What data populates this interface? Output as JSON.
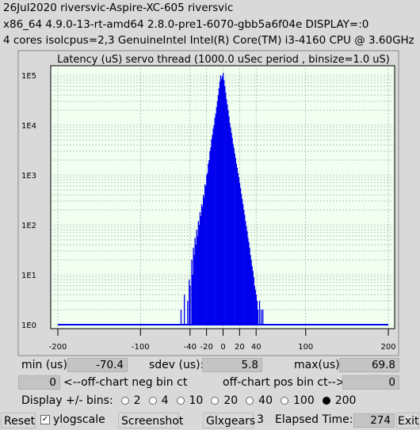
{
  "header": {
    "line1": "26Jul2020 riversvic-Aspire-XC-605 riversvic",
    "line2": "x86_64  4.9.0-13-rt-amd64  2.8.0-pre1-6070-gbb5a6f04e  DISPLAY=:0",
    "line3": "4 cores  isolcpus=2,3   GenuineIntel  Intel(R) Core(TM) i3-4160 CPU @ 3.60GHz"
  },
  "chart_data": {
    "type": "bar",
    "title": "Latency (uS) servo thread (1000.0 uSec period , binsize=1.0 uS)",
    "xlim": [
      -200,
      200
    ],
    "ylog": true,
    "ylim_exp": [
      0,
      5
    ],
    "x_ticks": [
      -200,
      -100,
      -40,
      -20,
      0,
      20,
      40,
      100,
      200
    ],
    "y_ticks": [
      "1E0",
      "1E1",
      "1E2",
      "1E3",
      "1E4",
      "1E5"
    ],
    "bar_color": "#0000ee",
    "background": "#f0fff0",
    "grid": true,
    "x": [
      -71,
      -60,
      -51,
      -47,
      -43,
      -41,
      -40,
      -38,
      -37,
      -36,
      -35,
      -34,
      -33,
      -32,
      -31,
      -30,
      -29,
      -28,
      -27,
      -26,
      -25,
      -24,
      -23,
      -22,
      -21,
      -20,
      -19,
      -18,
      -17,
      -16,
      -15,
      -14,
      -13,
      -12,
      -11,
      -10,
      -9,
      -8,
      -7,
      -6,
      -5,
      -4,
      -3,
      -2,
      -1,
      0,
      1,
      2,
      3,
      4,
      5,
      6,
      7,
      8,
      9,
      10,
      11,
      12,
      13,
      14,
      15,
      16,
      17,
      18,
      19,
      20,
      21,
      22,
      23,
      24,
      25,
      26,
      27,
      28,
      29,
      30,
      31,
      32,
      33,
      34,
      35,
      36,
      37,
      38,
      39,
      40,
      41,
      42,
      44,
      46,
      48,
      52,
      55,
      60,
      70
    ],
    "values": [
      1,
      1,
      2,
      4,
      3,
      8,
      6,
      20,
      10,
      35,
      25,
      55,
      40,
      80,
      60,
      120,
      100,
      180,
      150,
      260,
      230,
      400,
      350,
      650,
      600,
      1000,
      1100,
      1700,
      2000,
      3000,
      3600,
      5200,
      6400,
      8500,
      10000,
      14000,
      17000,
      23000,
      30000,
      40000,
      55000,
      75000,
      100000,
      85000,
      95000,
      110000,
      80000,
      60000,
      45000,
      33000,
      26000,
      20000,
      15000,
      11000,
      9000,
      7000,
      5500,
      4200,
      3500,
      2700,
      2200,
      1700,
      1400,
      1100,
      900,
      700,
      550,
      420,
      330,
      260,
      200,
      160,
      120,
      95,
      75,
      55,
      45,
      35,
      25,
      20,
      15,
      12,
      9,
      6,
      5,
      4,
      3,
      2,
      3,
      2,
      2,
      1,
      1,
      1,
      1
    ]
  },
  "stats": {
    "min_label": "min (us)",
    "min_value": "-70.4",
    "sdev_label": "sdev (us):",
    "sdev_value": "5.8",
    "max_label": "max(us)",
    "max_value": "69.8",
    "neg_value": "0",
    "neg_label": "<--off-chart neg bin ct",
    "pos_label": "off-chart pos bin ct-->",
    "pos_value": "0"
  },
  "bins": {
    "label": "Display +/- bins:",
    "options": [
      "2",
      "4",
      "10",
      "20",
      "40",
      "100",
      "200"
    ],
    "selected": "200"
  },
  "bottom": {
    "reset": "Reset",
    "ylog_label": "ylogscale",
    "ylog_checked": "✓",
    "screenshot": "Screenshot",
    "glxgears": "Glxgears",
    "glx_count": "3",
    "elapsed_label": "Elapsed Time:",
    "elapsed_value": "274",
    "exit": "Exit"
  }
}
